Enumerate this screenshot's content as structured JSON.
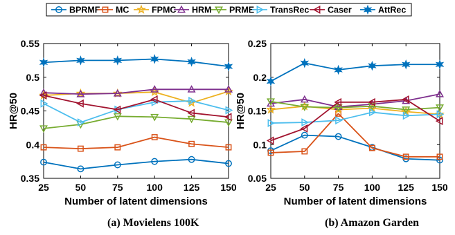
{
  "legend": {
    "items": [
      {
        "name": "BPRMF",
        "color": "#0072BD",
        "marker": "circle"
      },
      {
        "name": "MC",
        "color": "#D95319",
        "marker": "square"
      },
      {
        "name": "FPMC",
        "color": "#EDB120",
        "marker": "star"
      },
      {
        "name": "HRM",
        "color": "#7E2F8E",
        "marker": "triangle-up"
      },
      {
        "name": "PRME",
        "color": "#77AC30",
        "marker": "triangle-down"
      },
      {
        "name": "TransRec",
        "color": "#4DBEEE",
        "marker": "triangle-right"
      },
      {
        "name": "Caser",
        "color": "#A2142F",
        "marker": "triangle-left"
      },
      {
        "name": "AttRec",
        "color": "#0072BD",
        "marker": "hexagram"
      }
    ]
  },
  "chart_data": [
    {
      "type": "line",
      "caption": "(a) Movielens 100K",
      "xlabel": "Number of latent dimensions",
      "ylabel": "HR@50",
      "x": [
        25,
        50,
        75,
        100,
        125,
        150
      ],
      "xlim": [
        25,
        150
      ],
      "ylim": [
        0.35,
        0.55
      ],
      "yticks": [
        0.35,
        0.4,
        0.45,
        0.5,
        0.55
      ],
      "ytick_labels": [
        "0.35",
        "0.4",
        "0.45",
        "0.5",
        "0.55"
      ],
      "grid": false,
      "legend_position": "top",
      "series": [
        {
          "name": "BPRMF",
          "values": [
            0.374,
            0.364,
            0.37,
            0.375,
            0.378,
            0.372
          ]
        },
        {
          "name": "MC",
          "values": [
            0.396,
            0.394,
            0.396,
            0.411,
            0.401,
            0.396
          ]
        },
        {
          "name": "FPMC",
          "values": [
            0.473,
            0.476,
            0.476,
            0.478,
            0.462,
            0.479
          ]
        },
        {
          "name": "HRM",
          "values": [
            0.477,
            0.475,
            0.476,
            0.482,
            0.482,
            0.482
          ]
        },
        {
          "name": "PRME",
          "values": [
            0.424,
            0.43,
            0.442,
            0.441,
            0.438,
            0.433
          ]
        },
        {
          "name": "TransRec",
          "values": [
            0.461,
            0.433,
            0.452,
            0.463,
            0.465,
            0.451
          ]
        },
        {
          "name": "Caser",
          "values": [
            0.473,
            0.461,
            0.452,
            0.467,
            0.447,
            0.441
          ]
        },
        {
          "name": "AttRec",
          "values": [
            0.522,
            0.525,
            0.525,
            0.527,
            0.523,
            0.516
          ]
        }
      ]
    },
    {
      "type": "line",
      "caption": "(b) Amazon Garden",
      "xlabel": "Number of latent dimensions",
      "ylabel": "HR@50",
      "x": [
        25,
        50,
        75,
        100,
        125,
        150
      ],
      "xlim": [
        25,
        150
      ],
      "ylim": [
        0.05,
        0.25
      ],
      "yticks": [
        0.05,
        0.1,
        0.15,
        0.2,
        0.25
      ],
      "ytick_labels": [
        "0.05",
        "0.1",
        "0.15",
        "0.2",
        "0.25"
      ],
      "grid": false,
      "legend_position": "top",
      "series": [
        {
          "name": "BPRMF",
          "values": [
            0.091,
            0.114,
            0.112,
            0.096,
            0.079,
            0.077
          ]
        },
        {
          "name": "MC",
          "values": [
            0.088,
            0.09,
            0.146,
            0.095,
            0.082,
            0.082
          ]
        },
        {
          "name": "FPMC",
          "values": [
            0.152,
            0.157,
            0.152,
            0.154,
            0.149,
            0.145
          ]
        },
        {
          "name": "HRM",
          "values": [
            0.161,
            0.167,
            0.156,
            0.16,
            0.165,
            0.175
          ]
        },
        {
          "name": "PRME",
          "values": [
            0.164,
            0.156,
            0.155,
            0.157,
            0.152,
            0.155
          ]
        },
        {
          "name": "TransRec",
          "values": [
            0.132,
            0.133,
            0.136,
            0.148,
            0.143,
            0.145
          ]
        },
        {
          "name": "Caser",
          "values": [
            0.106,
            0.124,
            0.163,
            0.163,
            0.167,
            0.135
          ]
        },
        {
          "name": "AttRec",
          "values": [
            0.194,
            0.221,
            0.211,
            0.217,
            0.219,
            0.219
          ]
        }
      ]
    }
  ]
}
